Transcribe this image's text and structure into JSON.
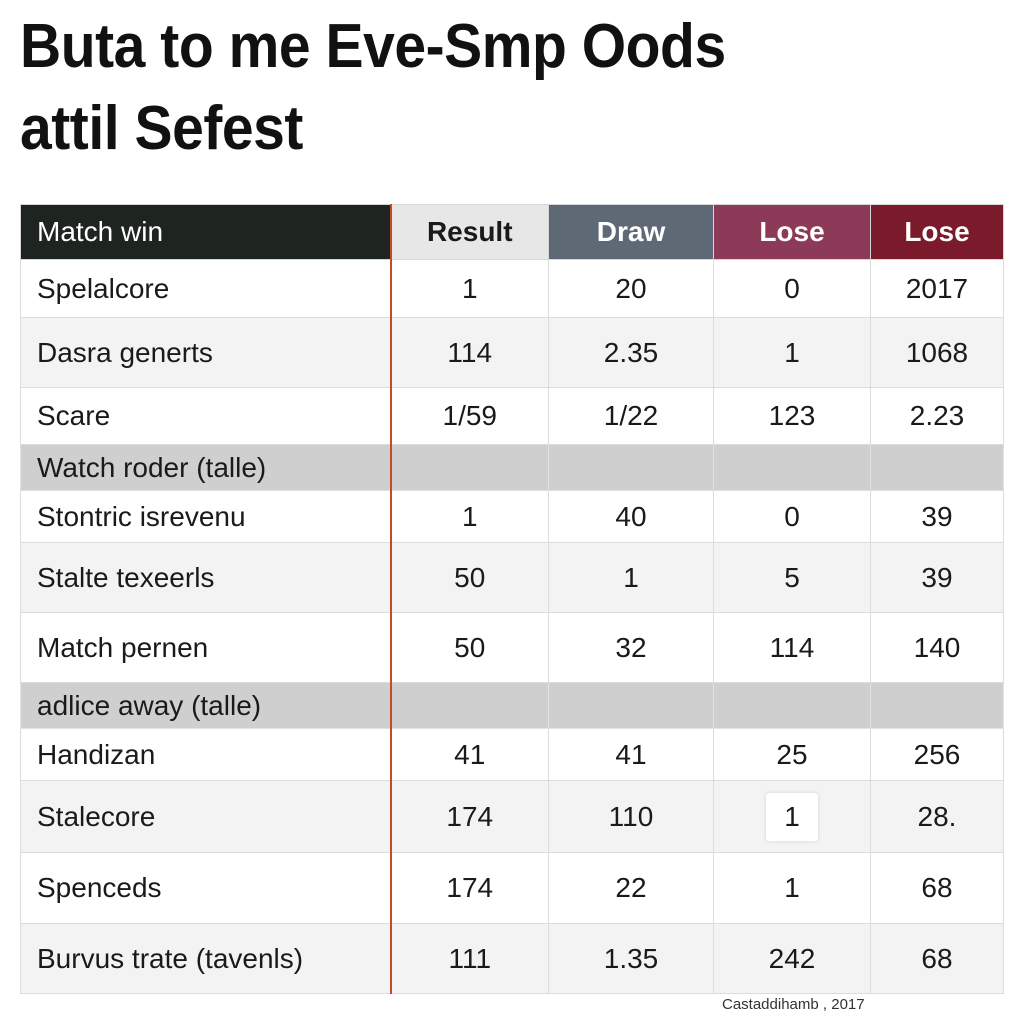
{
  "title": {
    "line1": "Buta to me Eve-Smp Oods",
    "line2": "attil Sefest"
  },
  "colors": {
    "header_dark": "#1e2420",
    "header_light": "#e7e7e7",
    "header_slate": "#5f6975",
    "header_mauve": "#8c3a57",
    "header_maroon": "#7b1a2a",
    "section_gray": "#cfcfcf",
    "divider_accent": "#c44a2a"
  },
  "table": {
    "headers": [
      "Match win",
      "Result",
      "Draw",
      "Lose",
      "Lose"
    ],
    "rows": [
      {
        "label": "Spelalcore",
        "values": [
          "1",
          "20",
          "0",
          "2017"
        ]
      },
      {
        "label": "Dasra generts",
        "values": [
          "114",
          "2.35",
          "1",
          "1068"
        ]
      },
      {
        "label": "Scare",
        "values": [
          "1/59",
          "1/22",
          "123",
          "2.23"
        ]
      },
      {
        "label": "Watch roder (talle)",
        "values": [
          "",
          "",
          "",
          ""
        ]
      },
      {
        "label": "Stontric isrevenu",
        "values": [
          "1",
          "40",
          "0",
          "39"
        ]
      },
      {
        "label": "Stalte texeerls",
        "values": [
          "50",
          "1",
          "5",
          "39"
        ]
      },
      {
        "label": "Match pernen",
        "values": [
          "50",
          "32",
          "114",
          "140"
        ]
      },
      {
        "label": "adlice away (talle)",
        "values": [
          "",
          "",
          "",
          ""
        ]
      },
      {
        "label": "Handizan",
        "values": [
          "41",
          "41",
          "25",
          "256"
        ]
      },
      {
        "label": "Stalecore",
        "values": [
          "174",
          "110",
          "1",
          "28."
        ]
      },
      {
        "label": "Spenceds",
        "values": [
          "174",
          "22",
          "1",
          "68"
        ]
      },
      {
        "label": "Burvus trate (tavenls)",
        "values": [
          "111",
          "1.35",
          "242",
          "68"
        ]
      }
    ]
  },
  "caption": "Castaddihamb , 2017"
}
